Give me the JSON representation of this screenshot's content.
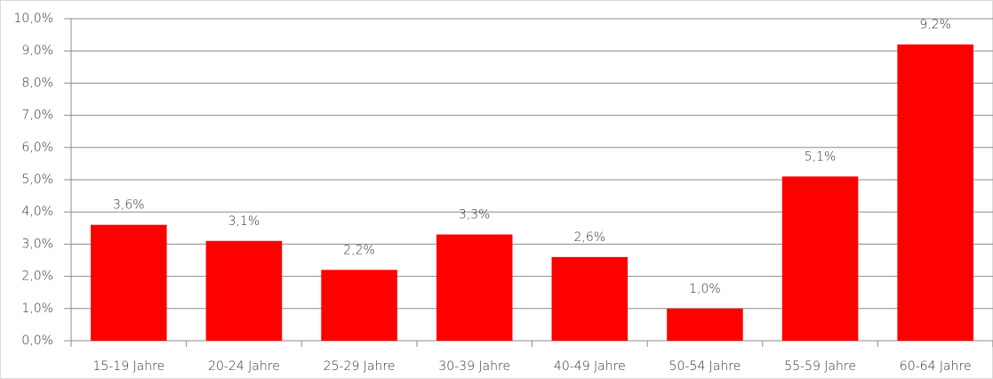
{
  "chart_data": {
    "type": "bar",
    "categories": [
      "15-19 Jahre",
      "20-24 Jahre",
      "25-29 Jahre",
      "30-39 Jahre",
      "40-49 Jahre",
      "50-54 Jahre",
      "55-59 Jahre",
      "60-64 Jahre"
    ],
    "values": [
      3.6,
      3.1,
      2.2,
      3.3,
      2.6,
      1.0,
      5.1,
      9.2
    ],
    "value_labels": [
      "3,6%",
      "3,1%",
      "2,2%",
      "3,3%",
      "2,6%",
      "1,0%",
      "5,1%",
      "9,2%"
    ],
    "color": "#ff0000",
    "ylim": [
      0,
      10
    ],
    "yticks": [
      {
        "value": 0,
        "label": "0,0%"
      },
      {
        "value": 1,
        "label": "1,0%"
      },
      {
        "value": 2,
        "label": "2,0%"
      },
      {
        "value": 3,
        "label": "3,0%"
      },
      {
        "value": 4,
        "label": "4,0%"
      },
      {
        "value": 5,
        "label": "5,0%"
      },
      {
        "value": 6,
        "label": "6,0%"
      },
      {
        "value": 7,
        "label": "7,0%"
      },
      {
        "value": 8,
        "label": "8,0%"
      },
      {
        "value": 9,
        "label": "9,0%"
      },
      {
        "value": 10,
        "label": "10,0%"
      }
    ],
    "grid": true
  }
}
